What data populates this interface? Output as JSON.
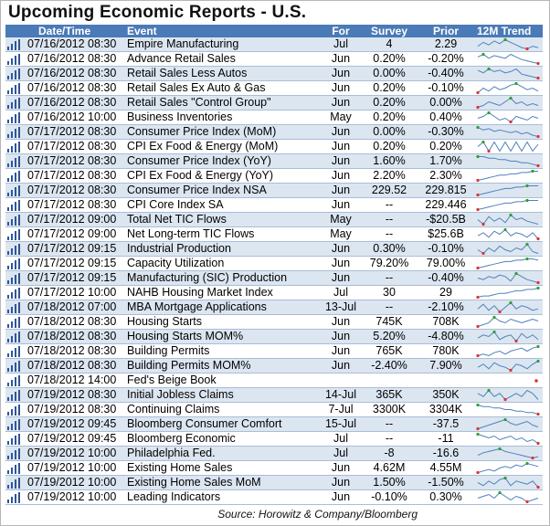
{
  "title": "Upcoming Economic Reports - U.S.",
  "columns": {
    "datetime": "Date/Time",
    "event": "Event",
    "for": "For",
    "survey": "Survey",
    "prior": "Prior",
    "trend": "12M Trend"
  },
  "rows": [
    {
      "datetime": "07/16/2012 08:30",
      "event": "Empire Manufacturing",
      "for": "Jul",
      "survey": "4",
      "prior": "2.29",
      "trend": [
        3,
        6,
        4,
        7,
        5,
        8,
        6,
        4,
        2,
        1,
        3,
        2
      ]
    },
    {
      "datetime": "07/16/2012 08:30",
      "event": "Advance Retail Sales",
      "for": "Jun",
      "survey": "0.20%",
      "prior": "-0.20%",
      "trend": [
        6,
        8,
        5,
        7,
        6,
        5,
        8,
        6,
        4,
        3,
        2,
        1
      ]
    },
    {
      "datetime": "07/16/2012 08:30",
      "event": "Retail Sales Less Autos",
      "for": "Jun",
      "survey": "0.00%",
      "prior": "-0.40%",
      "trend": [
        7,
        5,
        8,
        6,
        7,
        5,
        6,
        8,
        4,
        3,
        2,
        1
      ]
    },
    {
      "datetime": "07/16/2012 08:30",
      "event": "Retail Sales Ex Auto & Gas",
      "for": "Jun",
      "survey": "0.20%",
      "prior": "-0.10%",
      "trend": [
        2,
        5,
        3,
        6,
        4,
        5,
        7,
        8,
        6,
        4,
        5,
        3
      ]
    },
    {
      "datetime": "07/16/2012 08:30",
      "event": "Retail Sales \"Control Group\"",
      "for": "Jun",
      "survey": "0.20%",
      "prior": "0.00%",
      "trend": [
        3,
        4,
        6,
        5,
        4,
        6,
        8,
        5,
        6,
        4,
        5,
        4
      ]
    },
    {
      "datetime": "07/16/2012 10:00",
      "event": "Business Inventories",
      "for": "May",
      "survey": "0.20%",
      "prior": "0.40%",
      "trend": [
        5,
        6,
        8,
        6,
        4,
        5,
        3,
        6,
        5,
        4,
        6,
        5
      ]
    },
    {
      "datetime": "07/17/2012 08:30",
      "event": "Consumer Price Index (MoM)",
      "for": "Jun",
      "survey": "0.00%",
      "prior": "-0.30%",
      "trend": [
        8,
        6,
        7,
        5,
        6,
        5,
        4,
        5,
        3,
        4,
        2,
        1
      ]
    },
    {
      "datetime": "07/17/2012 08:30",
      "event": "CPI Ex Food & Energy (MoM)",
      "for": "Jun",
      "survey": "0.20%",
      "prior": "0.20%",
      "trend": [
        5,
        7,
        3,
        7,
        3,
        7,
        3,
        7,
        3,
        7,
        3,
        6
      ]
    },
    {
      "datetime": "07/17/2012 08:30",
      "event": "Consumer Price Index (YoY)",
      "for": "Jun",
      "survey": "1.60%",
      "prior": "1.70%",
      "trend": [
        8,
        8,
        7,
        7,
        6,
        6,
        5,
        5,
        4,
        4,
        3,
        2
      ]
    },
    {
      "datetime": "07/17/2012 08:30",
      "event": "CPI Ex Food & Energy (YoY)",
      "for": "Jun",
      "survey": "2.20%",
      "prior": "2.30%",
      "trend": [
        1,
        2,
        3,
        4,
        5,
        5,
        6,
        6,
        7,
        7,
        8,
        8
      ]
    },
    {
      "datetime": "07/17/2012 08:30",
      "event": "Consumer Price Index NSA",
      "for": "Jun",
      "survey": "229.52",
      "prior": "229.815",
      "trend": [
        1,
        2,
        3,
        4,
        5,
        6,
        6,
        7,
        7,
        8,
        8,
        8
      ]
    },
    {
      "datetime": "07/17/2012 08:30",
      "event": "CPI Core Index SA",
      "for": "Jun",
      "survey": "--",
      "prior": "229.446",
      "trend": [
        1,
        2,
        3,
        4,
        5,
        6,
        6,
        7,
        7,
        8,
        8,
        8
      ]
    },
    {
      "datetime": "07/17/2012 09:00",
      "event": "Total Net TIC Flows",
      "for": "May",
      "survey": "--",
      "prior": "-$20.5B",
      "trend": [
        5,
        2,
        7,
        4,
        6,
        3,
        8,
        5,
        6,
        4,
        3,
        2
      ]
    },
    {
      "datetime": "07/17/2012 09:00",
      "event": "Net Long-term TIC Flows",
      "for": "May",
      "survey": "--",
      "prior": "$25.6B",
      "trend": [
        4,
        6,
        3,
        7,
        5,
        8,
        4,
        6,
        5,
        3,
        6,
        2
      ]
    },
    {
      "datetime": "07/17/2012 09:15",
      "event": "Industrial Production",
      "for": "Jun",
      "survey": "0.30%",
      "prior": "-0.10%",
      "trend": [
        5,
        3,
        6,
        4,
        7,
        5,
        4,
        6,
        5,
        8,
        4,
        3
      ]
    },
    {
      "datetime": "07/17/2012 09:15",
      "event": "Capacity Utilization",
      "for": "Jun",
      "survey": "79.20%",
      "prior": "79.00%",
      "trend": [
        1,
        2,
        3,
        4,
        5,
        6,
        6,
        7,
        7,
        8,
        8,
        7
      ]
    },
    {
      "datetime": "07/17/2012 09:15",
      "event": "Manufacturing (SIC) Production",
      "for": "Jun",
      "survey": "--",
      "prior": "-0.40%",
      "trend": [
        5,
        4,
        6,
        5,
        7,
        6,
        3,
        8,
        6,
        4,
        3,
        2
      ]
    },
    {
      "datetime": "07/17/2012 10:00",
      "event": "NAHB Housing Market Index",
      "for": "Jul",
      "survey": "30",
      "prior": "29",
      "trend": [
        1,
        2,
        2,
        3,
        4,
        4,
        5,
        6,
        6,
        7,
        7,
        8
      ]
    },
    {
      "datetime": "07/18/2012 07:00",
      "event": "MBA Mortgage Applications",
      "for": "13-Jul",
      "survey": "--",
      "prior": "-2.10%",
      "trend": [
        4,
        7,
        3,
        6,
        2,
        5,
        8,
        4,
        6,
        5,
        3,
        4
      ]
    },
    {
      "datetime": "07/18/2012 08:30",
      "event": "Housing Starts",
      "for": "Jun",
      "survey": "745K",
      "prior": "708K",
      "trend": [
        3,
        4,
        5,
        8,
        6,
        5,
        7,
        6,
        5,
        6,
        7,
        6
      ]
    },
    {
      "datetime": "07/18/2012 08:30",
      "event": "Housing Starts MOM%",
      "for": "Jun",
      "survey": "5.20%",
      "prior": "-4.80%",
      "trend": [
        4,
        6,
        5,
        8,
        3,
        5,
        6,
        2,
        7,
        4,
        6,
        3
      ]
    },
    {
      "datetime": "07/18/2012 08:30",
      "event": "Building Permits",
      "for": "Jun",
      "survey": "765K",
      "prior": "780K",
      "trend": [
        2,
        3,
        2,
        4,
        5,
        3,
        5,
        6,
        7,
        5,
        7,
        8
      ]
    },
    {
      "datetime": "07/18/2012 08:30",
      "event": "Building Permits MOM%",
      "for": "Jun",
      "survey": "-2.40%",
      "prior": "7.90%",
      "trend": [
        4,
        6,
        3,
        7,
        5,
        4,
        2,
        6,
        5,
        3,
        6,
        8
      ]
    },
    {
      "datetime": "07/18/2012 14:00",
      "event": "Fed's Beige Book",
      "for": "",
      "survey": "",
      "prior": "",
      "trend": []
    },
    {
      "datetime": "07/19/2012 08:30",
      "event": "Initial Jobless Claims",
      "for": "14-Jul",
      "survey": "365K",
      "prior": "350K",
      "trend": [
        6,
        5,
        7,
        5,
        6,
        4,
        5,
        6,
        5,
        7,
        6,
        4
      ]
    },
    {
      "datetime": "07/19/2012 08:30",
      "event": "Continuing Claims",
      "for": "7-Jul",
      "survey": "3300K",
      "prior": "3304K",
      "trend": [
        8,
        7,
        7,
        6,
        6,
        5,
        5,
        4,
        4,
        3,
        3,
        2
      ]
    },
    {
      "datetime": "07/19/2012 09:45",
      "event": "Bloomberg Consumer Comfort",
      "for": "15-Jul",
      "survey": "--",
      "prior": "-37.5",
      "trend": [
        3,
        4,
        5,
        6,
        7,
        8,
        6,
        5,
        6,
        7,
        5,
        4
      ]
    },
    {
      "datetime": "07/19/2012 09:45",
      "event": "Bloomberg Economic",
      "for": "Jul",
      "survey": "--",
      "prior": "-11",
      "trend": [
        6,
        5,
        4,
        5,
        3,
        4,
        5,
        3,
        4,
        2,
        3,
        1
      ]
    },
    {
      "datetime": "07/19/2012 10:00",
      "event": "Philadelphia Fed.",
      "for": "Jul",
      "survey": "-8",
      "prior": "-16.6",
      "trend": [
        3,
        5,
        6,
        7,
        8,
        6,
        5,
        4,
        3,
        2,
        1,
        2
      ]
    },
    {
      "datetime": "07/19/2012 10:00",
      "event": "Existing Home Sales",
      "for": "Jun",
      "survey": "4.62M",
      "prior": "4.55M",
      "trend": [
        2,
        3,
        4,
        3,
        5,
        6,
        5,
        7,
        6,
        8,
        7,
        6
      ]
    },
    {
      "datetime": "07/19/2012 10:00",
      "event": "Existing Home Sales MoM",
      "for": "Jun",
      "survey": "1.50%",
      "prior": "-1.50%",
      "trend": [
        5,
        3,
        6,
        4,
        7,
        8,
        3,
        6,
        5,
        4,
        6,
        2
      ]
    },
    {
      "datetime": "07/19/2012 10:00",
      "event": "Leading Indicators",
      "for": "Jun",
      "survey": "-0.10%",
      "prior": "0.30%",
      "trend": [
        5,
        6,
        7,
        5,
        8,
        6,
        4,
        6,
        5,
        3,
        4,
        5
      ]
    }
  ],
  "footer": "Source: Horowitz & Company/Bloomberg",
  "colors": {
    "header": "#4a7ab7",
    "alt_row": "#dce6f1",
    "spark_line": "#4f81bd",
    "spark_high": "#2ca02c",
    "spark_low": "#e03030",
    "bars_icon": "#2f5597"
  }
}
